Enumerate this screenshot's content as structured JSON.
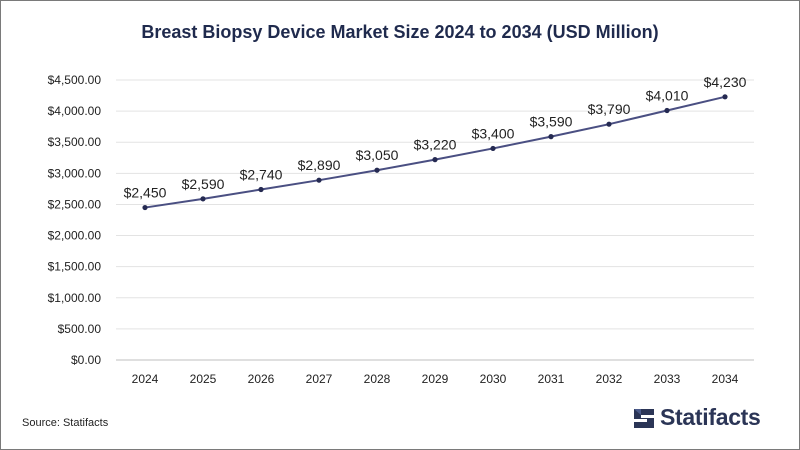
{
  "title": "Breast Biopsy Device Market Size 2024 to 2034 (USD Million)",
  "source": "Source: Statifacts",
  "logo": {
    "text": "Statifacts",
    "icon": "statifacts-logo-icon"
  },
  "colors": {
    "line": "#4a4f82",
    "marker": "#252a52",
    "grid": "#e3e3e3",
    "axis": "#bfbfbf",
    "title": "#1f2a4d",
    "text": "#222222"
  },
  "chart_data": {
    "type": "line",
    "title": "Breast Biopsy Device Market Size 2024 to 2034 (USD Million)",
    "xlabel": "",
    "ylabel": "",
    "categories": [
      "2024",
      "2025",
      "2026",
      "2027",
      "2028",
      "2029",
      "2030",
      "2031",
      "2032",
      "2033",
      "2034"
    ],
    "values": [
      2450,
      2590,
      2740,
      2890,
      3050,
      3220,
      3400,
      3590,
      3790,
      4010,
      4230
    ],
    "data_labels": [
      "$2,450",
      "$2,590",
      "$2,740",
      "$2,890",
      "$3,050",
      "$3,220",
      "$3,400",
      "$3,590",
      "$3,790",
      "$4,010",
      "$4,230"
    ],
    "ylim": [
      0,
      4500
    ],
    "yticks": [
      0,
      500,
      1000,
      1500,
      2000,
      2500,
      3000,
      3500,
      4000,
      4500
    ],
    "ytick_labels": [
      "$0.00",
      "$500.00",
      "$1,000.00",
      "$1,500.00",
      "$2,000.00",
      "$2,500.00",
      "$3,000.00",
      "$3,500.00",
      "$4,000.00",
      "$4,500.00"
    ],
    "grid": true,
    "legend": "none"
  }
}
